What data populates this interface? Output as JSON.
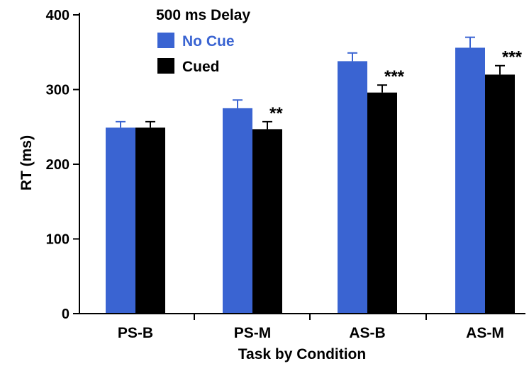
{
  "chart_data": {
    "type": "bar",
    "title": "",
    "xlabel": "Task by Condition",
    "ylabel": "RT (ms)",
    "ylim": [
      0,
      400
    ],
    "yticks": [
      0,
      100,
      200,
      300,
      400
    ],
    "categories": [
      "PS-B",
      "PS-M",
      "AS-B",
      "AS-M"
    ],
    "legend": {
      "title": "500 ms Delay",
      "placement": "top-left"
    },
    "series": [
      {
        "name": "No Cue",
        "color": "#3a64d2",
        "values": [
          249,
          275,
          338,
          356
        ],
        "errors": [
          8,
          11,
          11,
          14
        ]
      },
      {
        "name": "Cued",
        "color": "#000000",
        "values": [
          249,
          247,
          296,
          320
        ],
        "errors": [
          8,
          10,
          10,
          12
        ]
      }
    ],
    "annotations": [
      "",
      "**",
      "***",
      "***"
    ],
    "grid": false
  }
}
